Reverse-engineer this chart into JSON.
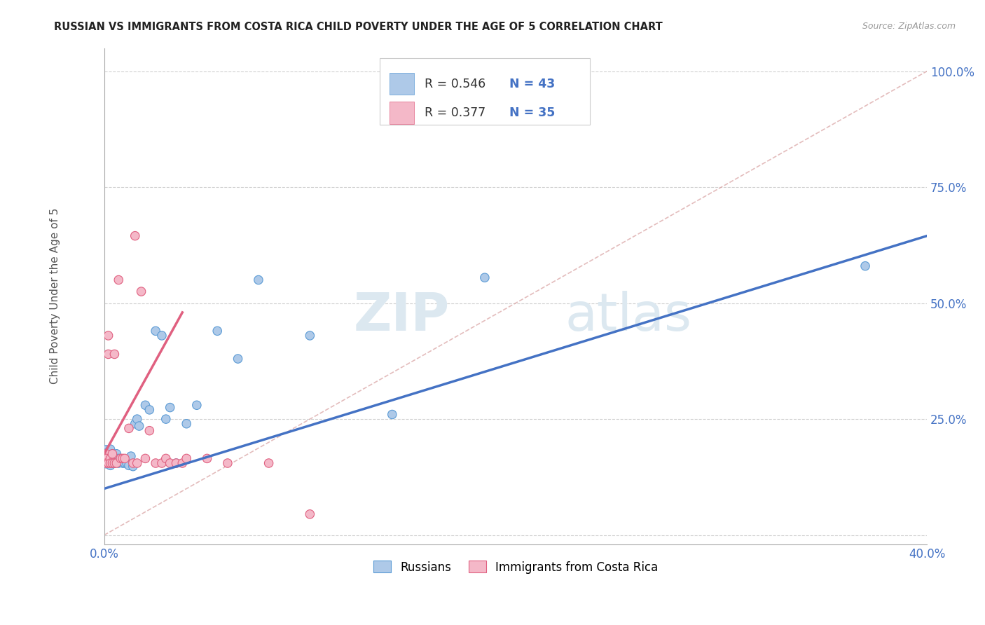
{
  "title": "RUSSIAN VS IMMIGRANTS FROM COSTA RICA CHILD POVERTY UNDER THE AGE OF 5 CORRELATION CHART",
  "source": "Source: ZipAtlas.com",
  "ylabel": "Child Poverty Under the Age of 5",
  "xlim": [
    0.0,
    0.4
  ],
  "ylim": [
    -0.02,
    1.05
  ],
  "yticks": [
    0.0,
    0.25,
    0.5,
    0.75,
    1.0
  ],
  "ytick_labels": [
    "",
    "25.0%",
    "50.0%",
    "75.0%",
    "100.0%"
  ],
  "xticks": [
    0.0,
    0.08,
    0.16,
    0.24,
    0.32,
    0.4
  ],
  "xtick_labels": [
    "0.0%",
    "",
    "",
    "",
    "",
    "40.0%"
  ],
  "watermark_zip": "ZIP",
  "watermark_atlas": "atlas",
  "blue_color": "#aec9e8",
  "blue_edge": "#5b9bd5",
  "pink_color": "#f4b8c8",
  "pink_edge": "#e06080",
  "blue_line": "#4472c4",
  "pink_line": "#e06080",
  "diag_color": "#d8a0a0",
  "russians_x": [
    0.001,
    0.001,
    0.001,
    0.002,
    0.002,
    0.002,
    0.003,
    0.003,
    0.003,
    0.004,
    0.004,
    0.005,
    0.005,
    0.006,
    0.006,
    0.007,
    0.007,
    0.008,
    0.009,
    0.01,
    0.011,
    0.012,
    0.013,
    0.014,
    0.015,
    0.016,
    0.017,
    0.02,
    0.022,
    0.025,
    0.028,
    0.03,
    0.032,
    0.035,
    0.04,
    0.045,
    0.055,
    0.065,
    0.075,
    0.1,
    0.14,
    0.185,
    0.37
  ],
  "russians_y": [
    0.175,
    0.165,
    0.155,
    0.175,
    0.165,
    0.155,
    0.185,
    0.165,
    0.15,
    0.175,
    0.155,
    0.17,
    0.155,
    0.175,
    0.158,
    0.165,
    0.155,
    0.158,
    0.155,
    0.155,
    0.155,
    0.15,
    0.17,
    0.148,
    0.24,
    0.25,
    0.235,
    0.28,
    0.27,
    0.44,
    0.43,
    0.25,
    0.275,
    0.155,
    0.24,
    0.28,
    0.44,
    0.38,
    0.55,
    0.43,
    0.26,
    0.555,
    0.58
  ],
  "russians_size": [
    300,
    150,
    100,
    150,
    100,
    80,
    80,
    80,
    80,
    80,
    80,
    80,
    80,
    80,
    80,
    80,
    80,
    80,
    80,
    80,
    80,
    80,
    80,
    80,
    80,
    80,
    80,
    80,
    80,
    80,
    80,
    80,
    80,
    80,
    80,
    80,
    80,
    80,
    80,
    80,
    80,
    80,
    80
  ],
  "costarica_x": [
    0.001,
    0.001,
    0.001,
    0.002,
    0.002,
    0.002,
    0.003,
    0.003,
    0.004,
    0.004,
    0.005,
    0.005,
    0.006,
    0.007,
    0.008,
    0.009,
    0.01,
    0.012,
    0.014,
    0.015,
    0.016,
    0.018,
    0.02,
    0.022,
    0.025,
    0.028,
    0.03,
    0.032,
    0.035,
    0.038,
    0.04,
    0.05,
    0.06,
    0.08,
    0.1
  ],
  "costarica_y": [
    0.175,
    0.165,
    0.155,
    0.43,
    0.39,
    0.155,
    0.165,
    0.155,
    0.175,
    0.155,
    0.39,
    0.155,
    0.155,
    0.55,
    0.165,
    0.165,
    0.165,
    0.23,
    0.155,
    0.645,
    0.155,
    0.525,
    0.165,
    0.225,
    0.155,
    0.155,
    0.165,
    0.155,
    0.155,
    0.155,
    0.165,
    0.165,
    0.155,
    0.155,
    0.045
  ],
  "costarica_size": [
    80,
    80,
    80,
    80,
    80,
    80,
    80,
    80,
    80,
    80,
    80,
    80,
    80,
    80,
    80,
    80,
    80,
    80,
    80,
    80,
    80,
    80,
    80,
    80,
    80,
    80,
    80,
    80,
    80,
    80,
    80,
    80,
    80,
    80,
    80
  ],
  "blue_line_x0": 0.0,
  "blue_line_y0": 0.1,
  "blue_line_x1": 0.4,
  "blue_line_y1": 0.645,
  "pink_line_x0": 0.0,
  "pink_line_y0": 0.175,
  "pink_line_x1": 0.038,
  "pink_line_y1": 0.48
}
